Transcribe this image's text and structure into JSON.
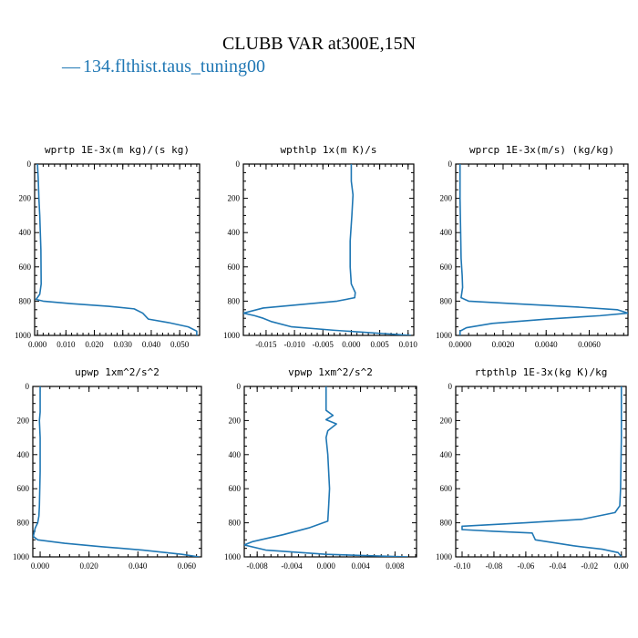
{
  "title": "CLUBB VAR at300E,15N",
  "legend": {
    "marker": "—",
    "label": "134.flthist.taus_tuning00",
    "color": "#1f77b4"
  },
  "chart_data": [
    {
      "type": "line",
      "title": "wprtp  1E-3x(m kg)/(s kg)",
      "xlim": [
        -0.001,
        0.057
      ],
      "ylim": [
        1000,
        0
      ],
      "xticks": [
        0.0,
        0.01,
        0.02,
        0.03,
        0.04,
        0.05
      ],
      "xtick_labels": [
        "0.000",
        "0.010",
        "0.020",
        "0.030",
        "0.040",
        "0.050"
      ],
      "yticks": [
        0,
        200,
        400,
        600,
        800,
        1000
      ],
      "ytick_labels": [
        "0",
        "200",
        "400",
        "600",
        "800",
        "1000"
      ],
      "series": [
        {
          "x": [
            0.0,
            0.0003,
            0.0005,
            0.0008,
            0.001,
            0.0012,
            0.0013,
            0.0008,
            -0.0005,
            0.002,
            0.012,
            0.025,
            0.034,
            0.037,
            0.039,
            0.046,
            0.053,
            0.056,
            0.056
          ],
          "y": [
            0,
            100,
            200,
            300,
            400,
            500,
            700,
            760,
            790,
            800,
            815,
            830,
            845,
            870,
            905,
            925,
            950,
            975,
            1000
          ]
        }
      ]
    },
    {
      "type": "line",
      "title": "wpthlp  1x(m K)/s",
      "xlim": [
        -0.019,
        0.011
      ],
      "ylim": [
        1000,
        0
      ],
      "xticks": [
        -0.015,
        -0.01,
        -0.005,
        0.0,
        0.005,
        0.01
      ],
      "xtick_labels": [
        "-0.015",
        "-0.010",
        "-0.005",
        "0.000",
        "0.005",
        "0.010"
      ],
      "yticks": [
        0,
        200,
        400,
        600,
        800,
        1000
      ],
      "ytick_labels": [
        "0",
        "200",
        "400",
        "600",
        "800",
        "1000"
      ],
      "series": [
        {
          "x": [
            0.0,
            0.0,
            0.0003,
            0.0001,
            -0.0002,
            -0.0002,
            0.0,
            0.0007,
            0.0006,
            -0.0025,
            -0.009,
            -0.0155,
            -0.019,
            -0.017,
            -0.0155,
            -0.014,
            -0.0105,
            -0.003,
            0.006,
            0.0105
          ],
          "y": [
            0,
            100,
            180,
            300,
            450,
            600,
            700,
            750,
            780,
            800,
            820,
            840,
            870,
            885,
            900,
            920,
            950,
            970,
            990,
            1000
          ]
        }
      ]
    },
    {
      "type": "line",
      "title": "wprcp  1E-3x(m/s) (kg/kg)",
      "xlim": [
        -0.0002,
        0.0078
      ],
      "ylim": [
        1000,
        0
      ],
      "xticks": [
        0.0,
        0.002,
        0.004,
        0.006
      ],
      "xtick_labels": [
        "0.0000",
        "0.0020",
        "0.0040",
        "0.0060"
      ],
      "yticks": [
        0,
        200,
        400,
        600,
        800,
        1000
      ],
      "ytick_labels": [
        "0",
        "200",
        "400",
        "600",
        "800",
        "1000"
      ],
      "series": [
        {
          "x": [
            0.0,
            0.0,
            3e-05,
            5e-05,
            0.0001,
            0.00012,
            5e-05,
            0.0004,
            0.0025,
            0.0055,
            0.0073,
            0.0078,
            0.0065,
            0.004,
            0.0015,
            0.0003,
            0.0,
            0.0
          ],
          "y": [
            0,
            200,
            400,
            550,
            650,
            720,
            780,
            800,
            815,
            835,
            850,
            870,
            885,
            905,
            930,
            955,
            975,
            1000
          ]
        }
      ]
    },
    {
      "type": "line",
      "title": "upwp  1xm^2/s^2",
      "xlim": [
        -0.003,
        0.066
      ],
      "ylim": [
        1000,
        0
      ],
      "xticks": [
        0.0,
        0.02,
        0.04,
        0.06
      ],
      "xtick_labels": [
        "0.000",
        "0.020",
        "0.040",
        "0.060"
      ],
      "yticks": [
        0,
        200,
        400,
        600,
        800,
        1000
      ],
      "ytick_labels": [
        "0",
        "200",
        "400",
        "600",
        "800",
        "1000"
      ],
      "series": [
        {
          "x": [
            0.0,
            0.0,
            -0.0003,
            0.0,
            0.0,
            -0.0003,
            -0.0005,
            -0.001,
            -0.002,
            -0.0025,
            -0.0028,
            -0.001,
            0.01,
            0.025,
            0.042,
            0.058,
            0.065
          ],
          "y": [
            0,
            150,
            200,
            300,
            500,
            700,
            760,
            800,
            830,
            860,
            880,
            900,
            920,
            940,
            960,
            985,
            1000
          ]
        }
      ]
    },
    {
      "type": "line",
      "title": "vpwp  1xm^2/s^2",
      "xlim": [
        -0.0095,
        0.0105
      ],
      "ylim": [
        1000,
        0
      ],
      "xticks": [
        -0.008,
        -0.004,
        0.0,
        0.004,
        0.008
      ],
      "xtick_labels": [
        "-0.008",
        "-0.004",
        "0.000",
        "0.004",
        "0.008"
      ],
      "yticks": [
        0,
        200,
        400,
        600,
        800,
        1000
      ],
      "ytick_labels": [
        "0",
        "200",
        "400",
        "600",
        "800",
        "1000"
      ],
      "series": [
        {
          "x": [
            0.0,
            0.0,
            0.0008,
            0.0,
            0.0012,
            0.0002,
            0.0,
            0.0002,
            0.0004,
            0.0003,
            0.0002,
            -0.002,
            -0.005,
            -0.0085,
            -0.0095,
            -0.007,
            0.0,
            0.0095
          ],
          "y": [
            0,
            140,
            170,
            195,
            220,
            260,
            300,
            400,
            600,
            700,
            790,
            830,
            870,
            910,
            930,
            960,
            985,
            1000
          ]
        }
      ]
    },
    {
      "type": "line",
      "title": "rtpthlp  1E-3x(kg K)/kg",
      "xlim": [
        -0.104,
        0.003
      ],
      "ylim": [
        1000,
        0
      ],
      "xticks": [
        -0.1,
        -0.08,
        -0.06,
        -0.04,
        -0.02,
        0.0
      ],
      "xtick_labels": [
        "-0.10",
        "-0.08",
        "-0.06",
        "-0.04",
        "-0.02",
        "0.00"
      ],
      "yticks": [
        0,
        200,
        400,
        600,
        800,
        1000
      ],
      "ytick_labels": [
        "0",
        "200",
        "400",
        "600",
        "800",
        "1000"
      ],
      "series": [
        {
          "x": [
            0.0,
            0.0,
            -0.0005,
            -0.001,
            -0.004,
            -0.025,
            -0.06,
            -0.1,
            -0.1,
            -0.08,
            -0.056,
            -0.054,
            -0.03,
            -0.012,
            -0.002,
            0.0
          ],
          "y": [
            0,
            300,
            600,
            700,
            740,
            780,
            800,
            820,
            840,
            850,
            860,
            900,
            935,
            955,
            975,
            1000
          ]
        }
      ]
    }
  ]
}
